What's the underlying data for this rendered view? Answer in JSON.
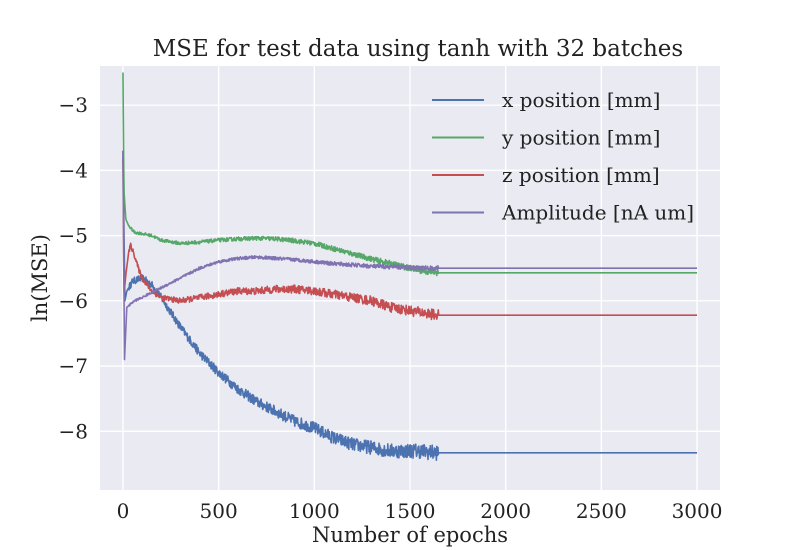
{
  "chart_data": {
    "type": "line",
    "title": "MSE for test data using tanh with 32 batches",
    "xlabel": "Number of epochs",
    "ylabel": "ln(MSE)",
    "xlim": [
      -120,
      3120
    ],
    "ylim": [
      -8.9,
      -2.4
    ],
    "xticks": [
      0,
      500,
      1000,
      1500,
      2000,
      2500,
      3000
    ],
    "xtick_labels": [
      "0",
      "500",
      "1000",
      "1500",
      "2000",
      "2500",
      "3000"
    ],
    "yticks": [
      -8,
      -7,
      -6,
      -5,
      -4,
      -3
    ],
    "ytick_labels": [
      "−8",
      "−7",
      "−6",
      "−5",
      "−4",
      "−3"
    ],
    "grid": true,
    "legend_position": "upper-right",
    "series": [
      {
        "name": "x position [mm]",
        "color": "#4c72b0",
        "noise": 0.05,
        "noise_end": 1650,
        "x": [
          0,
          10,
          20,
          50,
          100,
          150,
          200,
          300,
          400,
          500,
          600,
          700,
          800,
          900,
          1000,
          1100,
          1200,
          1300,
          1400,
          1500,
          1550,
          1600,
          1650,
          3000
        ],
        "y": [
          -3.7,
          -6.0,
          -5.85,
          -5.7,
          -5.65,
          -5.75,
          -5.95,
          -6.4,
          -6.8,
          -7.1,
          -7.35,
          -7.55,
          -7.7,
          -7.85,
          -7.95,
          -8.1,
          -8.2,
          -8.25,
          -8.3,
          -8.3,
          -8.3,
          -8.32,
          -8.33,
          -8.33
        ]
      },
      {
        "name": "y position [mm]",
        "color": "#55a868",
        "noise": 0.02,
        "noise_end": 1650,
        "x": [
          0,
          5,
          15,
          30,
          60,
          100,
          150,
          200,
          300,
          400,
          500,
          600,
          700,
          800,
          900,
          1000,
          1100,
          1200,
          1300,
          1400,
          1500,
          1600,
          1650,
          3000
        ],
        "y": [
          -2.5,
          -4.3,
          -4.75,
          -4.85,
          -4.95,
          -4.97,
          -5.0,
          -5.07,
          -5.12,
          -5.1,
          -5.07,
          -5.05,
          -5.04,
          -5.05,
          -5.08,
          -5.12,
          -5.2,
          -5.28,
          -5.36,
          -5.43,
          -5.5,
          -5.56,
          -5.57,
          -5.57
        ]
      },
      {
        "name": "z position [mm]",
        "color": "#c44e52",
        "noise": 0.035,
        "noise_end": 1650,
        "x": [
          0,
          5,
          15,
          30,
          40,
          60,
          80,
          100,
          150,
          200,
          300,
          400,
          500,
          600,
          700,
          800,
          900,
          1000,
          1100,
          1200,
          1300,
          1400,
          1500,
          1600,
          1650,
          3000
        ],
        "y": [
          -3.8,
          -5.9,
          -5.6,
          -5.25,
          -5.15,
          -5.3,
          -5.5,
          -5.65,
          -5.85,
          -5.95,
          -6.0,
          -5.95,
          -5.9,
          -5.85,
          -5.85,
          -5.82,
          -5.82,
          -5.85,
          -5.9,
          -5.95,
          -6.0,
          -6.1,
          -6.15,
          -6.2,
          -6.22,
          -6.22
        ]
      },
      {
        "name": "Amplitude [nA um]",
        "color": "#8172b2",
        "noise": 0.015,
        "noise_end": 1650,
        "x": [
          0,
          8,
          20,
          40,
          60,
          100,
          150,
          200,
          300,
          400,
          500,
          600,
          700,
          800,
          900,
          1000,
          1100,
          1200,
          1300,
          1400,
          1500,
          1600,
          1650,
          3000
        ],
        "y": [
          -3.7,
          -6.9,
          -6.1,
          -6.05,
          -6.0,
          -5.95,
          -5.87,
          -5.8,
          -5.65,
          -5.5,
          -5.4,
          -5.35,
          -5.33,
          -5.35,
          -5.37,
          -5.4,
          -5.43,
          -5.45,
          -5.47,
          -5.48,
          -5.49,
          -5.5,
          -5.5,
          -5.5
        ]
      }
    ]
  }
}
